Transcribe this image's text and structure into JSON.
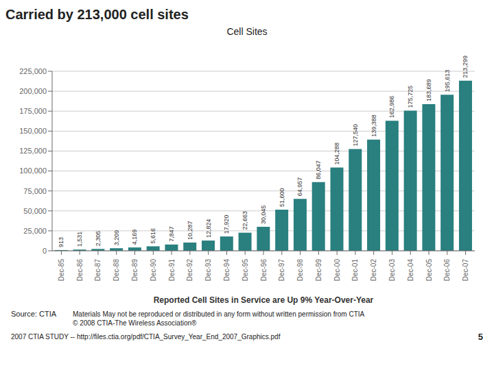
{
  "chart_data": {
    "type": "bar",
    "title": "Cell Sites",
    "xlabel": "Reported Cell Sites in Service are Up 9% Year-Over-Year",
    "annotations": [
      "Carried by 213,000 cell sites",
      "Source: CTIA",
      "Materials May not be reproduced or distributed in any form without written permission from CTIA\n© 2008 CTIA-The Wireless Association®",
      "2007 CTIA STUDY -- http://files.ctia.org/pdf/CTIA_Survey_Year_End_2007_Graphics.pdf",
      "5"
    ],
    "categories": [
      "Dec-85",
      "Dec-86",
      "Dec-87",
      "Dec-88",
      "Dec-89",
      "Dec-90",
      "Dec-91",
      "Dec-92",
      "Dec-93",
      "Dec-94",
      "Dec-95",
      "Dec-96",
      "Dec-97",
      "Dec-98",
      "Dec-99",
      "Dec-00",
      "Dec-01",
      "Dec-02",
      "Dec-03",
      "Dec-04",
      "Dec-05",
      "Dec-06",
      "Dec-07"
    ],
    "values": [
      913,
      1531,
      2305,
      3209,
      4169,
      5616,
      7847,
      10287,
      12824,
      17920,
      22663,
      30045,
      51600,
      64957,
      86047,
      104288,
      127540,
      139388,
      162986,
      175725,
      183689,
      195613,
      213299
    ],
    "value_labels": [
      "913",
      "1,531",
      "2,305",
      "3,209",
      "4,169",
      "5,616",
      "7,847",
      "10,287",
      "12,824",
      "17,920",
      "22,663",
      "30,045",
      "51,600",
      "64,957",
      "86,047",
      "104,288",
      "127,540",
      "139,388",
      "162,986",
      "175,725",
      "183,689",
      "195,613",
      "213,299"
    ],
    "data_labels": true,
    "color": "#2a7f7f",
    "ylim": [
      0,
      225000
    ],
    "yticks": [
      0,
      {
        "value": 25000,
        "label": "25,000"
      },
      {
        "value": 50000,
        "label": "50,000"
      },
      {
        "value": 75000,
        "label": "75,000"
      },
      {
        "value": 100000,
        "label": "100,000"
      },
      {
        "value": 125000,
        "label": "125,000"
      },
      {
        "value": 150000,
        "label": "150,000"
      },
      {
        "value": 175000,
        "label": "175,000"
      },
      {
        "value": 200000,
        "label": "200,000"
      },
      {
        "value": 225000,
        "label": "225,000"
      }
    ],
    "grid": true
  }
}
